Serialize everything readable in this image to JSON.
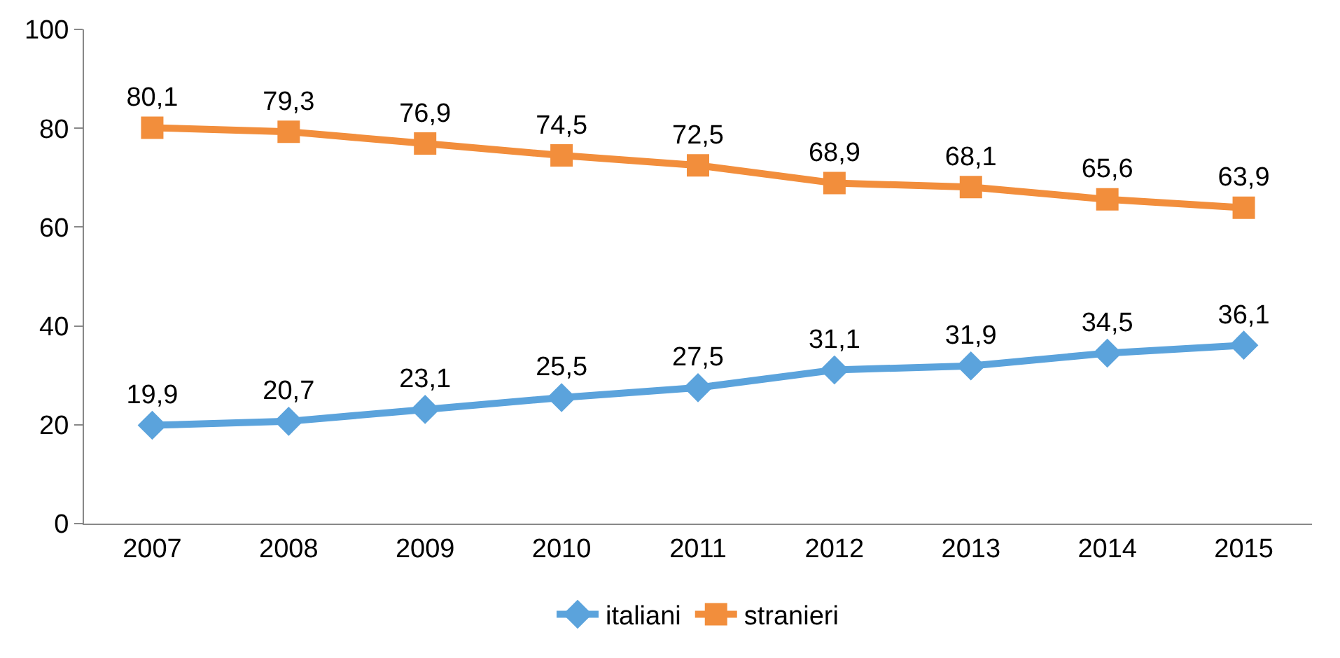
{
  "chart_data": {
    "type": "line",
    "categories": [
      "2007",
      "2008",
      "2009",
      "2010",
      "2011",
      "2012",
      "2013",
      "2014",
      "2015"
    ],
    "series": [
      {
        "name": "italiani",
        "color": "#5ba3dc",
        "marker": "diamond",
        "values": [
          19.9,
          20.7,
          23.1,
          25.5,
          27.5,
          31.1,
          31.9,
          34.5,
          36.1
        ],
        "value_labels": [
          "19,9",
          "20,7",
          "23,1",
          "25,5",
          "27,5",
          "31,1",
          "31,9",
          "34,5",
          "36,1"
        ]
      },
      {
        "name": "stranieri",
        "color": "#f28e3c",
        "marker": "square",
        "values": [
          80.1,
          79.3,
          76.9,
          74.5,
          72.5,
          68.9,
          68.1,
          65.6,
          63.9
        ],
        "value_labels": [
          "80,1",
          "79,3",
          "76,9",
          "74,5",
          "72,5",
          "68,9",
          "68,1",
          "65,6",
          "63,9"
        ]
      }
    ],
    "ylim": [
      0,
      100
    ],
    "yticks": [
      0,
      20,
      40,
      60,
      80,
      100
    ],
    "grid": false,
    "legend": "bottom",
    "line_style": "solid"
  }
}
